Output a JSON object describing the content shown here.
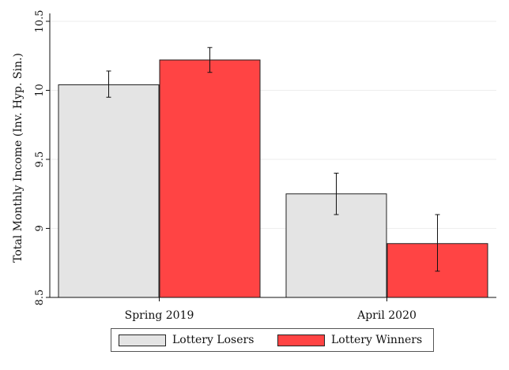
{
  "chart_data": {
    "type": "bar",
    "ylabel": "Total Monthly Income (Inv. Hyp. Sin.)",
    "xlabel": "",
    "ylim": [
      8.5,
      10.5
    ],
    "yticks": [
      8.5,
      9,
      9.5,
      10,
      10.5
    ],
    "ytick_labels": [
      "8.5",
      "9",
      "9.5",
      "10",
      "10.5"
    ],
    "categories": [
      "Spring 2019",
      "April 2020"
    ],
    "series": [
      {
        "name": "Lottery Losers",
        "color": "#e4e4e4",
        "values": [
          10.04,
          9.25
        ],
        "ci_low": [
          9.95,
          9.1
        ],
        "ci_high": [
          10.14,
          9.4
        ]
      },
      {
        "name": "Lottery Winners",
        "color": "#ff4444",
        "values": [
          10.22,
          8.89
        ],
        "ci_low": [
          10.13,
          8.69
        ],
        "ci_high": [
          10.31,
          9.1
        ]
      }
    ],
    "grid": true,
    "legend_position": "bottom"
  }
}
